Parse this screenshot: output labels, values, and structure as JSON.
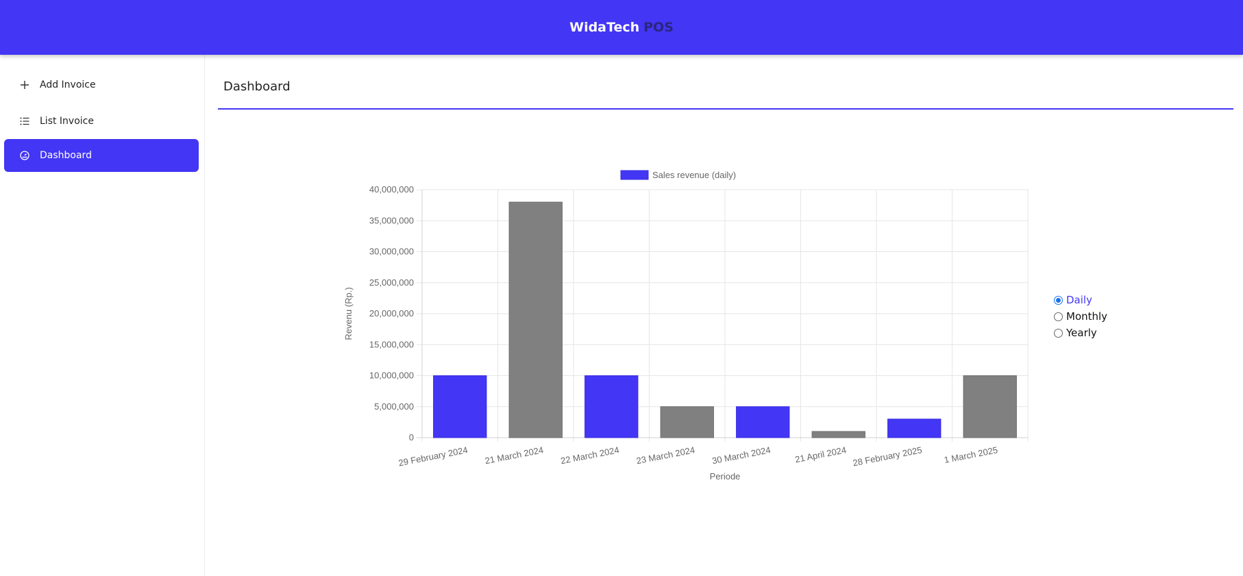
{
  "header": {
    "brand_main": "WidaTech",
    "brand_sub": "POS"
  },
  "sidebar": {
    "items": [
      {
        "label": "Add Invoice",
        "icon": "plus-icon",
        "active": false
      },
      {
        "label": "List Invoice",
        "icon": "list-icon",
        "active": false
      },
      {
        "label": "Dashboard",
        "icon": "dashboard-icon",
        "active": true
      }
    ]
  },
  "main": {
    "title": "Dashboard"
  },
  "period_options": [
    {
      "label": "Daily",
      "selected": true
    },
    {
      "label": "Monthly",
      "selected": false
    },
    {
      "label": "Yearly",
      "selected": false
    }
  ],
  "colors": {
    "accent": "#4336f4",
    "bar_alt": "#808080",
    "radio_checked": "#1a73e8"
  },
  "chart_data": {
    "type": "bar",
    "legend": "Sales revenue (daily)",
    "legend_position": "top",
    "xlabel": "Periode",
    "ylabel": "Revenu (Rp.)",
    "ylim": [
      0,
      40000000
    ],
    "yticks": [
      "0",
      "5,000,000",
      "10,000,000",
      "15,000,000",
      "20,000,000",
      "25,000,000",
      "30,000,000",
      "35,000,000",
      "40,000,000"
    ],
    "grid": true,
    "categories": [
      "29 February 2024",
      "21 March 2024",
      "22 March 2024",
      "23 March 2024",
      "30 March 2024",
      "21 April 2024",
      "28 February 2025",
      "1 March 2025"
    ],
    "values": [
      10000000,
      38000000,
      10000000,
      5000000,
      5000000,
      1000000,
      3000000,
      10000000
    ],
    "bar_colors": [
      "#4336f4",
      "#808080",
      "#4336f4",
      "#808080",
      "#4336f4",
      "#808080",
      "#4336f4",
      "#808080"
    ]
  }
}
